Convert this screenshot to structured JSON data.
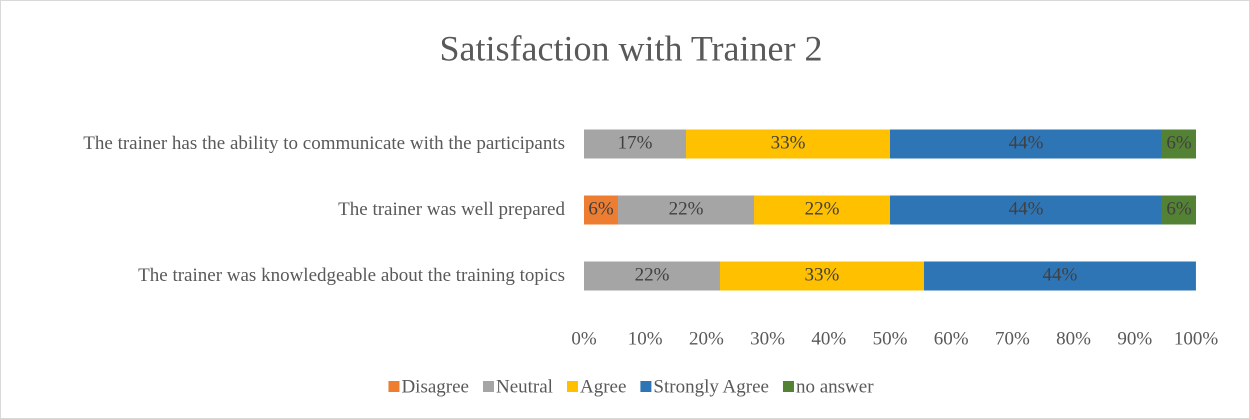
{
  "chart_data": {
    "type": "stacked-bar-horizontal",
    "title": "Satisfaction with Trainer 2",
    "categories": [
      "The trainer has the ability to communicate with the participants",
      "The trainer was well prepared",
      "The trainer was knowledgeable about the training topics"
    ],
    "series": [
      {
        "name": "Disagree",
        "color": "#ED7D31",
        "values": [
          null,
          5.56,
          null
        ],
        "value_labels": [
          null,
          "6%",
          null
        ]
      },
      {
        "name": "Neutral",
        "color": "#A5A5A5",
        "values": [
          16.67,
          22.22,
          22.22
        ],
        "value_labels": [
          "17%",
          "22%",
          "22%"
        ]
      },
      {
        "name": "Agree",
        "color": "#FFC000",
        "values": [
          33.33,
          22.22,
          33.33
        ],
        "value_labels": [
          "33%",
          "22%",
          "33%"
        ]
      },
      {
        "name": "Strongly Agree",
        "color": "#2E75B6",
        "values": [
          44.44,
          44.44,
          44.44
        ],
        "value_labels": [
          "44%",
          "44%",
          "44%"
        ]
      },
      {
        "name": "no answer",
        "color": "#548235",
        "values": [
          5.56,
          5.56,
          null
        ],
        "value_labels": [
          "6%",
          "6%",
          null
        ]
      }
    ],
    "xlim": [
      0,
      100
    ],
    "xticks": [
      {
        "value": 0,
        "label": "0%"
      },
      {
        "value": 10,
        "label": "10%"
      },
      {
        "value": 20,
        "label": "20%"
      },
      {
        "value": 30,
        "label": "30%"
      },
      {
        "value": 40,
        "label": "40%"
      },
      {
        "value": 50,
        "label": "50%"
      },
      {
        "value": 60,
        "label": "60%"
      },
      {
        "value": 70,
        "label": "70%"
      },
      {
        "value": 80,
        "label": "80%"
      },
      {
        "value": 90,
        "label": "90%"
      },
      {
        "value": 100,
        "label": "100%"
      }
    ],
    "legend": "bottom"
  }
}
